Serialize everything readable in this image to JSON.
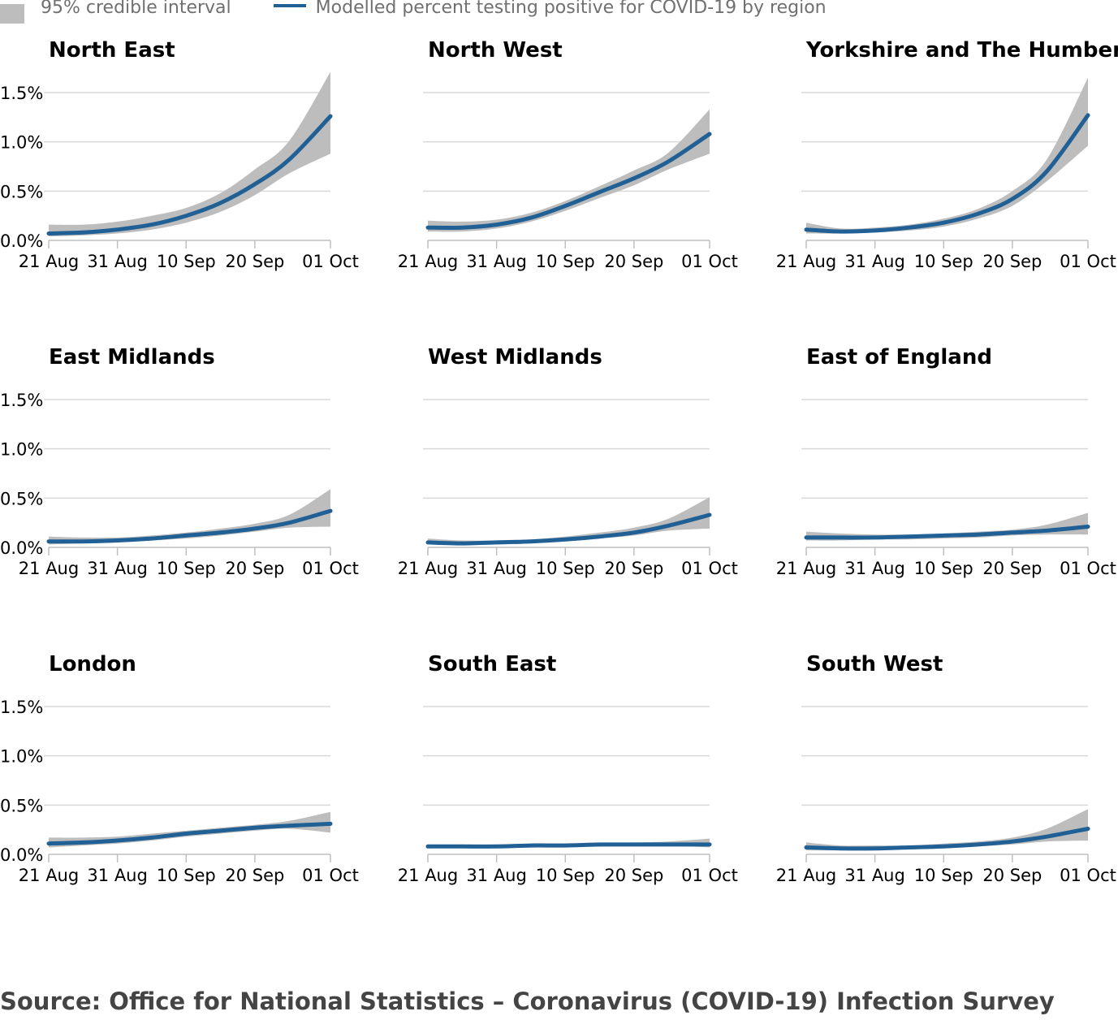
{
  "legend": {
    "band_label": "95% credible interval",
    "line_label": "Modelled percent testing positive for COVID-19 by region"
  },
  "colors": {
    "line": "#206095",
    "band": "#bdbdbd",
    "grid": "#d9d9d9",
    "axis": "#bfbfbf"
  },
  "source": "Source: Office for National Statistics – Coronavirus (COVID-19) Infection Survey",
  "chart_data": {
    "type": "line",
    "ylim": [
      0,
      1.5
    ],
    "y_ticks": [
      "0.0%",
      "0.5%",
      "1.0%",
      "1.5%"
    ],
    "x_ticks": [
      "21 Aug",
      "31 Aug",
      "10 Sep",
      "20 Sep",
      "01 Oct"
    ],
    "x_days": [
      0,
      10,
      20,
      30,
      41
    ],
    "panels": [
      {
        "title": "North East",
        "x": [
          "21 Aug",
          "26 Aug",
          "31 Aug",
          "05 Sep",
          "10 Sep",
          "15 Sep",
          "20 Sep",
          "25 Sep",
          "01 Oct"
        ],
        "values": [
          0.07,
          0.08,
          0.11,
          0.16,
          0.25,
          0.38,
          0.57,
          0.82,
          1.26
        ],
        "lower": [
          0.04,
          0.05,
          0.07,
          0.11,
          0.18,
          0.29,
          0.46,
          0.68,
          0.88
        ],
        "upper": [
          0.16,
          0.16,
          0.19,
          0.25,
          0.33,
          0.48,
          0.72,
          1.01,
          1.71
        ]
      },
      {
        "title": "North West",
        "x": [
          "21 Aug",
          "26 Aug",
          "31 Aug",
          "05 Sep",
          "10 Sep",
          "15 Sep",
          "20 Sep",
          "25 Sep",
          "01 Oct"
        ],
        "values": [
          0.13,
          0.13,
          0.16,
          0.23,
          0.35,
          0.49,
          0.63,
          0.8,
          1.08
        ],
        "lower": [
          0.09,
          0.09,
          0.12,
          0.19,
          0.3,
          0.43,
          0.56,
          0.72,
          0.88
        ],
        "upper": [
          0.2,
          0.19,
          0.21,
          0.28,
          0.4,
          0.55,
          0.71,
          0.89,
          1.33
        ]
      },
      {
        "title": "Yorkshire and The Humber",
        "x": [
          "21 Aug",
          "26 Aug",
          "31 Aug",
          "05 Sep",
          "10 Sep",
          "15 Sep",
          "20 Sep",
          "25 Sep",
          "01 Oct"
        ],
        "values": [
          0.11,
          0.09,
          0.1,
          0.13,
          0.18,
          0.27,
          0.42,
          0.7,
          1.27
        ],
        "lower": [
          0.07,
          0.07,
          0.08,
          0.1,
          0.14,
          0.22,
          0.35,
          0.6,
          0.96
        ],
        "upper": [
          0.18,
          0.12,
          0.13,
          0.16,
          0.22,
          0.32,
          0.5,
          0.82,
          1.65
        ]
      },
      {
        "title": "East Midlands",
        "x": [
          "21 Aug",
          "26 Aug",
          "31 Aug",
          "05 Sep",
          "10 Sep",
          "15 Sep",
          "20 Sep",
          "25 Sep",
          "01 Oct"
        ],
        "values": [
          0.06,
          0.06,
          0.07,
          0.09,
          0.12,
          0.15,
          0.19,
          0.25,
          0.37
        ],
        "lower": [
          0.03,
          0.04,
          0.05,
          0.07,
          0.09,
          0.12,
          0.16,
          0.2,
          0.21
        ],
        "upper": [
          0.11,
          0.1,
          0.1,
          0.12,
          0.15,
          0.19,
          0.24,
          0.33,
          0.59
        ]
      },
      {
        "title": "West Midlands",
        "x": [
          "21 Aug",
          "26 Aug",
          "31 Aug",
          "05 Sep",
          "10 Sep",
          "15 Sep",
          "20 Sep",
          "25 Sep",
          "01 Oct"
        ],
        "values": [
          0.05,
          0.04,
          0.05,
          0.06,
          0.08,
          0.11,
          0.15,
          0.22,
          0.33
        ],
        "lower": [
          0.03,
          0.03,
          0.03,
          0.04,
          0.06,
          0.09,
          0.12,
          0.17,
          0.19
        ],
        "upper": [
          0.09,
          0.07,
          0.07,
          0.08,
          0.11,
          0.15,
          0.2,
          0.29,
          0.51
        ]
      },
      {
        "title": "East of England",
        "x": [
          "21 Aug",
          "26 Aug",
          "31 Aug",
          "05 Sep",
          "10 Sep",
          "15 Sep",
          "20 Sep",
          "25 Sep",
          "01 Oct"
        ],
        "values": [
          0.1,
          0.1,
          0.1,
          0.11,
          0.12,
          0.13,
          0.15,
          0.17,
          0.21
        ],
        "lower": [
          0.07,
          0.07,
          0.08,
          0.08,
          0.09,
          0.1,
          0.12,
          0.13,
          0.13
        ],
        "upper": [
          0.16,
          0.14,
          0.13,
          0.13,
          0.14,
          0.16,
          0.18,
          0.23,
          0.35
        ]
      },
      {
        "title": "London",
        "x": [
          "21 Aug",
          "26 Aug",
          "31 Aug",
          "05 Sep",
          "10 Sep",
          "15 Sep",
          "20 Sep",
          "25 Sep",
          "01 Oct"
        ],
        "values": [
          0.11,
          0.12,
          0.14,
          0.17,
          0.21,
          0.24,
          0.27,
          0.29,
          0.31
        ],
        "lower": [
          0.07,
          0.09,
          0.11,
          0.14,
          0.18,
          0.21,
          0.24,
          0.26,
          0.22
        ],
        "upper": [
          0.17,
          0.17,
          0.18,
          0.21,
          0.24,
          0.27,
          0.3,
          0.34,
          0.43
        ]
      },
      {
        "title": "South East",
        "x": [
          "21 Aug",
          "26 Aug",
          "31 Aug",
          "05 Sep",
          "10 Sep",
          "15 Sep",
          "20 Sep",
          "25 Sep",
          "01 Oct"
        ],
        "values": [
          0.08,
          0.08,
          0.08,
          0.09,
          0.09,
          0.1,
          0.1,
          0.1,
          0.1
        ],
        "lower": [
          0.06,
          0.07,
          0.07,
          0.08,
          0.08,
          0.08,
          0.09,
          0.09,
          0.07
        ],
        "upper": [
          0.1,
          0.1,
          0.1,
          0.11,
          0.11,
          0.11,
          0.12,
          0.13,
          0.16
        ]
      },
      {
        "title": "South West",
        "x": [
          "21 Aug",
          "26 Aug",
          "31 Aug",
          "05 Sep",
          "10 Sep",
          "15 Sep",
          "20 Sep",
          "25 Sep",
          "01 Oct"
        ],
        "values": [
          0.07,
          0.06,
          0.06,
          0.07,
          0.08,
          0.1,
          0.13,
          0.18,
          0.26
        ],
        "lower": [
          0.04,
          0.04,
          0.04,
          0.05,
          0.06,
          0.08,
          0.1,
          0.13,
          0.14
        ],
        "upper": [
          0.12,
          0.09,
          0.09,
          0.09,
          0.11,
          0.13,
          0.17,
          0.26,
          0.46
        ]
      }
    ]
  }
}
